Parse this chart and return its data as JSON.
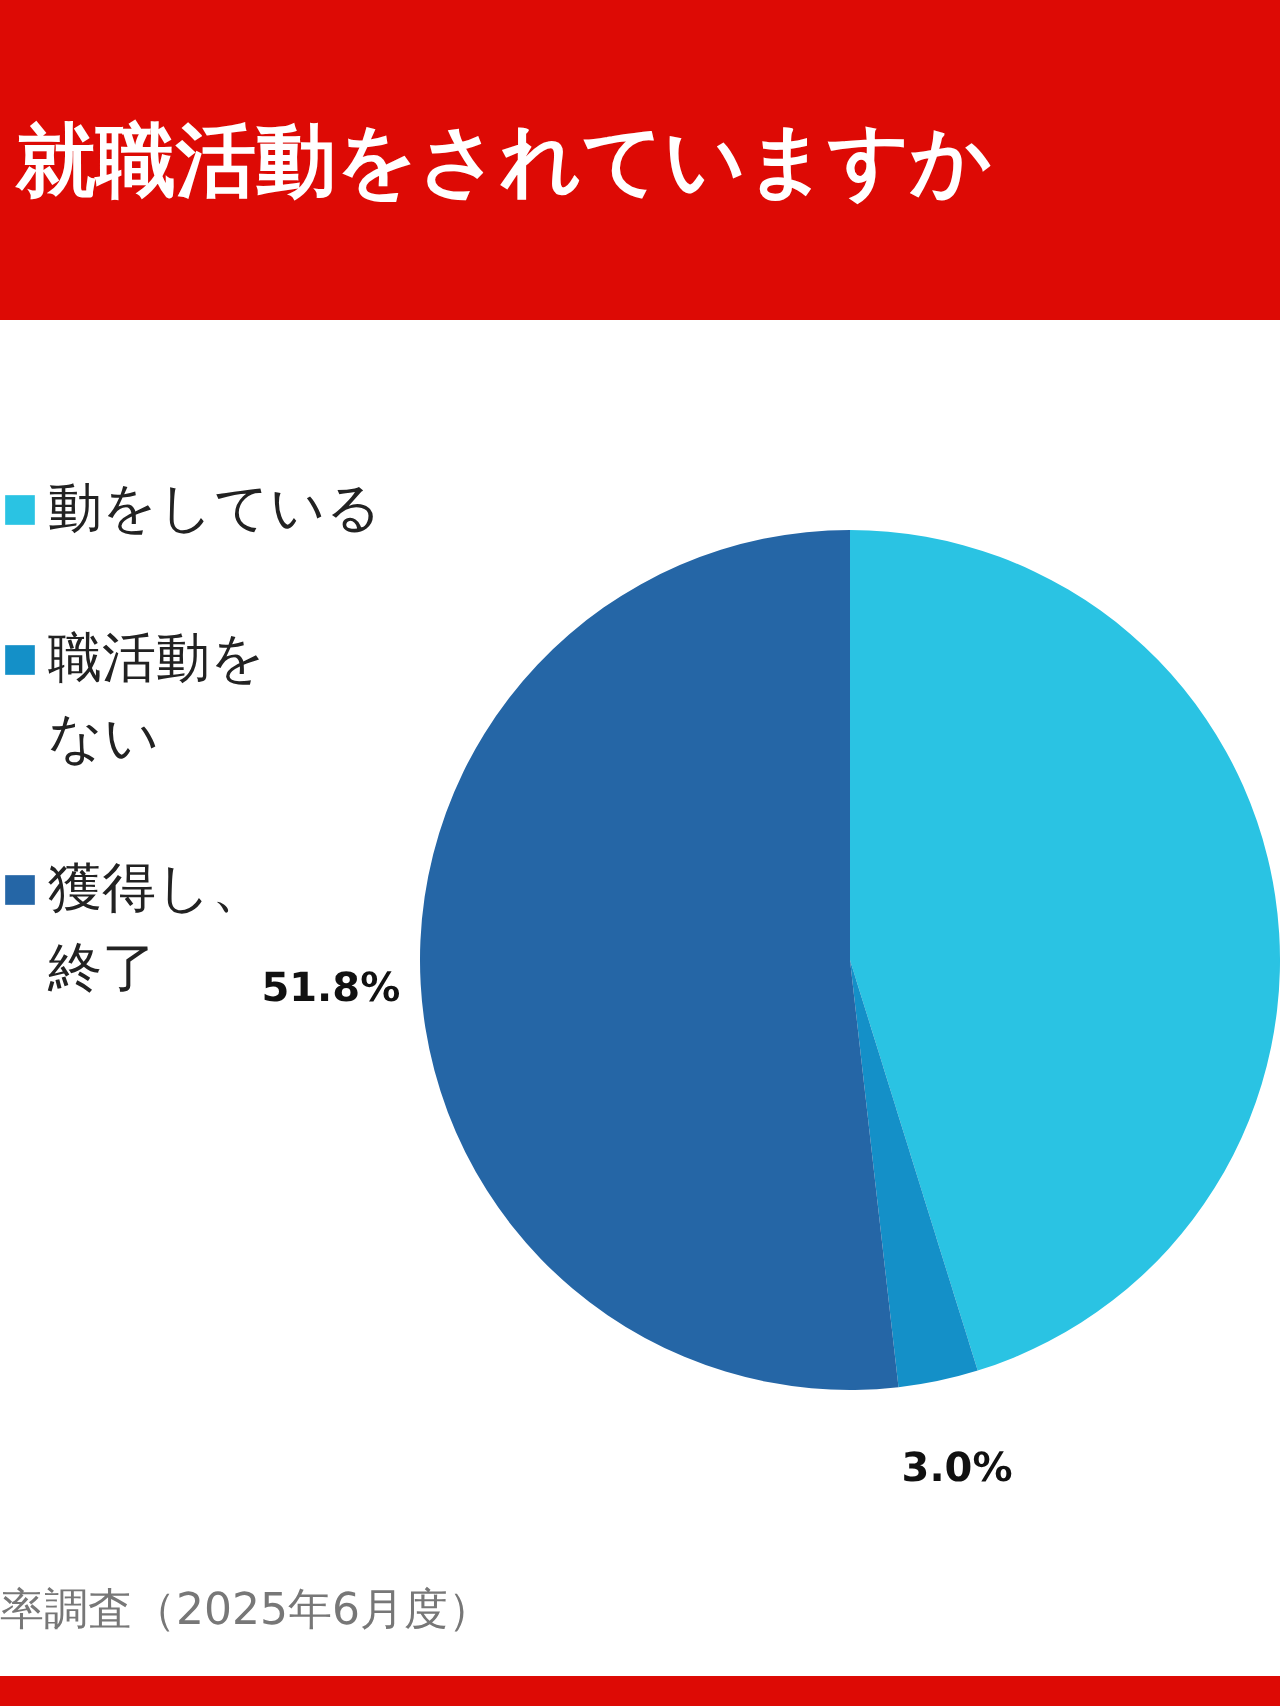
{
  "chart_data": {
    "type": "pie",
    "title": "就職活動をされていますか",
    "categories": [
      "動をしている",
      "職活動をない",
      "獲得し、終了"
    ],
    "values": [
      45.2,
      3.0,
      51.8
    ],
    "colors": [
      "#2ac3e3",
      "#1490c8",
      "#2566a6"
    ],
    "value_labels": [
      null,
      "3.0%",
      "51.8%"
    ],
    "annotations": [
      "率調査（2025年6月度）"
    ],
    "legend": "left"
  }
}
